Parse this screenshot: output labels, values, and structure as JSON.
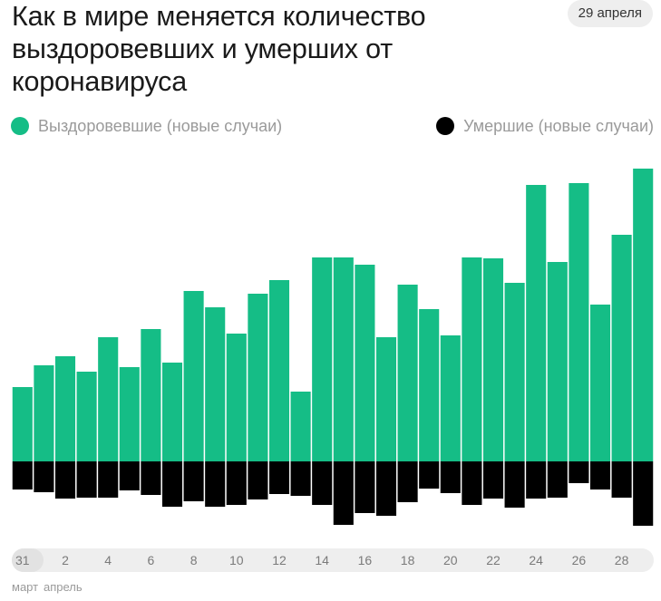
{
  "header": {
    "title": "Как в мире меняется количество выздоровевших и умерших от коронавируса",
    "date_badge": "29 апреля"
  },
  "legend": {
    "recovered_label": "Выздоровевшие (новые случаи)",
    "deaths_label": "Умершие (новые случаи)"
  },
  "axis": {
    "months": [
      "март",
      "апрель"
    ]
  },
  "colors": {
    "recovered": "#15bd86",
    "deaths": "#000000",
    "pill": "#eeeeee"
  },
  "chart_data": {
    "type": "bar",
    "categories": [
      "31",
      "1",
      "2",
      "3",
      "4",
      "5",
      "6",
      "7",
      "8",
      "9",
      "10",
      "11",
      "12",
      "13",
      "14",
      "15",
      "16",
      "17",
      "18",
      "19",
      "20",
      "21",
      "22",
      "23",
      "24",
      "25",
      "26",
      "27",
      "28",
      "29"
    ],
    "tick_labels": [
      "31",
      "2",
      "4",
      "6",
      "8",
      "10",
      "12",
      "14",
      "16",
      "18",
      "20",
      "22",
      "24",
      "26",
      "28"
    ],
    "series": [
      {
        "name": "Выздоровевшие (новые случаи)",
        "direction": "up",
        "values": [
          82,
          106,
          116,
          99,
          137,
          104,
          146,
          109,
          188,
          170,
          141,
          185,
          200,
          77,
          225,
          225,
          217,
          137,
          195,
          168,
          139,
          225,
          224,
          197,
          305,
          220,
          307,
          173,
          250,
          323
        ]
      },
      {
        "name": "Умершие (новые случаи)",
        "direction": "down",
        "values": [
          31,
          34,
          41,
          40,
          40,
          32,
          37,
          50,
          44,
          50,
          48,
          42,
          36,
          38,
          48,
          70,
          57,
          60,
          45,
          30,
          35,
          48,
          41,
          51,
          41,
          40,
          24,
          31,
          40,
          71
        ]
      }
    ]
  }
}
